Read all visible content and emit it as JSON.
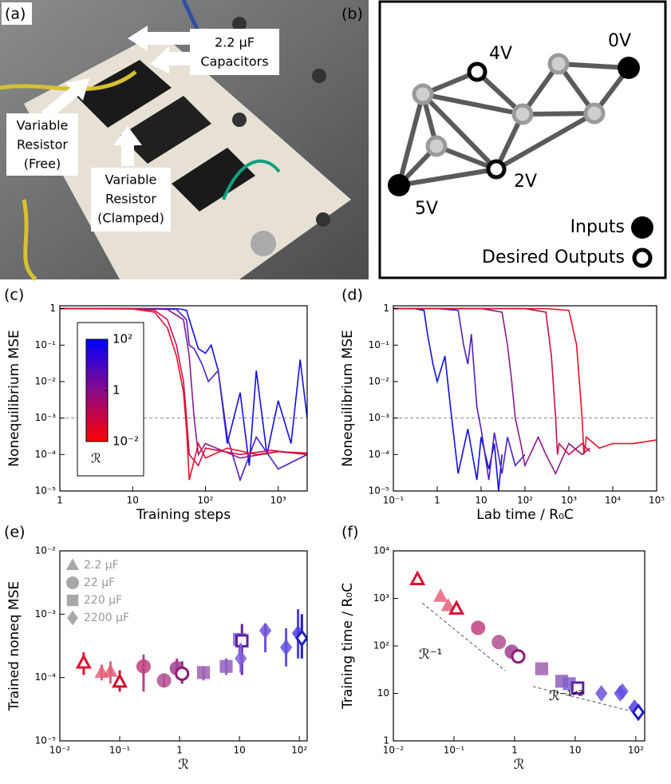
{
  "photo": {
    "label": "(a)",
    "callouts": [
      {
        "lines": [
          "2.2 μF",
          "Capacitors"
        ]
      },
      {
        "lines": [
          "Variable",
          "Resistor",
          "(Free)"
        ]
      },
      {
        "lines": [
          "Variable",
          "Resistor",
          "(Clamped)"
        ]
      }
    ]
  },
  "diagram": {
    "label": "(b)",
    "node_labels": [
      "4V",
      "0V",
      "2V",
      "5V"
    ],
    "legend": [
      "Inputs",
      "Desired Outputs"
    ]
  },
  "chart_data": [
    {
      "type": "line",
      "panel_label": "(c)",
      "x_label": "Training steps",
      "y_label": "Nonequilibrium MSE",
      "xscale": "log",
      "yscale": "log",
      "xlim": [
        1,
        2500
      ],
      "ylim": [
        1e-05,
        1.2
      ],
      "xticks": [
        1,
        10,
        {
          "value": 100,
          "label": "10²"
        },
        {
          "value": 1000,
          "label": "10³"
        }
      ],
      "yticks": [
        1,
        {
          "value": 0.1,
          "label": "10⁻¹"
        },
        {
          "value": 0.01,
          "label": "10⁻²"
        },
        {
          "value": 0.001,
          "label": "10⁻³"
        },
        {
          "value": 0.0001,
          "label": "10⁻⁴"
        },
        {
          "value": 1e-05,
          "label": "10⁻⁵"
        }
      ],
      "hline": 0.001,
      "colorbar": {
        "label": "ℛ",
        "lim": [
          0.01,
          100
        ],
        "colors": [
          "#ff0000",
          "#8a0a8a",
          "#0000ff"
        ],
        "ticks": [
          {
            "value": 100,
            "label": "10²"
          },
          1,
          {
            "value": 0.01,
            "label": "10⁻²"
          }
        ]
      },
      "series": [
        {
          "color": "#1010e0",
          "x": [
            1,
            30,
            45,
            55,
            65,
            80,
            100,
            120,
            150,
            200,
            300,
            400,
            500,
            700,
            1000,
            1500,
            2000,
            2500
          ],
          "values": [
            1,
            1,
            0.98,
            0.9,
            0.3,
            0.08,
            0.06,
            0.1,
            0.02,
            0.0002,
            0.005,
            5e-05,
            0.02,
            0.0001,
            0.003,
            0.0002,
            0.04,
            0.001
          ]
        },
        {
          "color": "#5020c0",
          "x": [
            1,
            20,
            40,
            55,
            60,
            70,
            90,
            110,
            150,
            200,
            300,
            500,
            1000,
            2500
          ],
          "values": [
            1,
            1,
            0.95,
            0.5,
            0.1,
            0.08,
            0.03,
            0.01,
            0.02,
            0.0003,
            2e-05,
            0.0003,
            4e-05,
            0.0001
          ]
        },
        {
          "color": "#8a1a8a",
          "x": [
            1,
            10,
            30,
            50,
            60,
            70,
            80,
            100,
            300,
            1000,
            2500
          ],
          "values": [
            1,
            1,
            0.95,
            0.5,
            0.05,
            0.001,
            0.0001,
            0.0002,
            8e-05,
            0.00012,
            0.0001
          ]
        },
        {
          "color": "#c8104a",
          "x": [
            1,
            10,
            20,
            30,
            40,
            50,
            55,
            60,
            80,
            100,
            300,
            800,
            2500
          ],
          "values": [
            1,
            0.99,
            0.9,
            0.5,
            0.1,
            0.01,
            0.001,
            0.0001,
            5e-05,
            0.00015,
            0.0001,
            0.00013,
            0.0001
          ]
        },
        {
          "color": "#e8102a",
          "x": [
            1,
            10,
            20,
            30,
            40,
            50,
            55,
            60,
            80,
            100,
            200,
            500,
            1000,
            2500
          ],
          "values": [
            1,
            0.98,
            0.8,
            0.3,
            0.05,
            0.005,
            0.0005,
            2e-05,
            0.0002,
            8e-05,
            0.00015,
            0.0001,
            0.00012,
            0.00011
          ]
        }
      ]
    },
    {
      "type": "line",
      "panel_label": "(d)",
      "x_label": "Lab time / R₀C",
      "y_label": "Nonequilibrium MSE",
      "xscale": "log",
      "yscale": "log",
      "xlim": [
        0.1,
        100000
      ],
      "ylim": [
        1e-05,
        1.2
      ],
      "xticks": [
        {
          "value": 0.1,
          "label": "10⁻¹"
        },
        1,
        10,
        {
          "value": 100,
          "label": "10²"
        },
        {
          "value": 1000,
          "label": "10³"
        },
        {
          "value": 10000,
          "label": "10⁴"
        },
        {
          "value": 100000,
          "label": "10⁵"
        }
      ],
      "yticks": [
        1,
        {
          "value": 0.1,
          "label": "10⁻¹"
        },
        {
          "value": 0.01,
          "label": "10⁻²"
        },
        {
          "value": 0.001,
          "label": "10⁻³"
        },
        {
          "value": 0.0001,
          "label": "10⁻⁴"
        },
        {
          "value": 1e-05,
          "label": "10⁻⁵"
        }
      ],
      "hline": 0.001,
      "series": [
        {
          "color": "#1010e0",
          "x": [
            0.1,
            0.3,
            0.5,
            0.6,
            0.8,
            1,
            1.5,
            2,
            3,
            5,
            8,
            10,
            15,
            20,
            25,
            30
          ],
          "values": [
            1,
            1,
            0.9,
            0.2,
            0.03,
            0.01,
            0.05,
            0.002,
            3e-05,
            0.0005,
            2e-05,
            0.0003,
            4e-05,
            0.0002,
            1e-05,
            0.0001
          ]
        },
        {
          "color": "#5020c0",
          "x": [
            0.1,
            1,
            3,
            4,
            5,
            6,
            8,
            10,
            15,
            20,
            30,
            40,
            60,
            100
          ],
          "values": [
            1,
            1,
            0.9,
            0.1,
            0.03,
            0.2,
            0.002,
            0.0005,
            2e-05,
            0.0004,
            3e-05,
            0.0003,
            5e-05,
            0.0001
          ]
        },
        {
          "color": "#8a1a8a",
          "x": [
            0.1,
            10,
            30,
            40,
            50,
            60,
            80,
            100,
            200,
            300,
            500,
            1000,
            2000,
            3000
          ],
          "values": [
            1,
            1,
            0.8,
            0.1,
            0.01,
            0.001,
            0.0002,
            5e-05,
            0.0003,
            0.0001,
            3e-05,
            0.0002,
            0.0001,
            0.00015
          ]
        },
        {
          "color": "#c8104a",
          "x": [
            0.1,
            100,
            300,
            400,
            500,
            550,
            600,
            1000,
            2000,
            3000
          ],
          "values": [
            1,
            1,
            0.8,
            0.05,
            0.001,
            0.0001,
            0.0002,
            0.0001,
            0.0002,
            0.00012
          ]
        },
        {
          "color": "#e8102a",
          "x": [
            0.1,
            300,
            1000,
            1500,
            2000,
            2200,
            2500,
            5000,
            10000,
            30000,
            100000
          ],
          "values": [
            1,
            1,
            0.9,
            0.1,
            0.001,
            0.0001,
            0.0003,
            0.00015,
            0.0002,
            0.0002,
            0.00025
          ]
        }
      ]
    },
    {
      "type": "scatter",
      "panel_label": "(e)",
      "x_label": "ℛ",
      "y_label": "Trained noneq MSE",
      "xscale": "log",
      "yscale": "log",
      "xlim": [
        0.01,
        135
      ],
      "ylim": [
        1e-05,
        0.01
      ],
      "legend_color": "#999999",
      "xticks": [
        {
          "value": 0.01,
          "label": "10⁻²"
        },
        {
          "value": 0.1,
          "label": "10⁻¹"
        },
        1,
        10,
        {
          "value": 100,
          "label": "10²"
        }
      ],
      "yticks": [
        {
          "value": 0.01,
          "label": "10⁻²"
        },
        {
          "value": 0.001,
          "label": "10⁻³"
        },
        {
          "value": 0.0001,
          "label": "10⁻⁴"
        },
        {
          "value": 1e-05,
          "label": "10⁻⁵"
        }
      ],
      "series": [
        {
          "name": "2.2 μF",
          "marker": "triangle",
          "x": [
            0.025,
            0.05,
            0.07,
            0.1
          ],
          "values": [
            0.00017,
            0.00012,
            0.000125,
            8.5e-05
          ],
          "low": [
            0.00011,
            9e-05,
            8e-05,
            6e-05
          ],
          "high": [
            0.00025,
            0.00016,
            0.00018,
            0.00013
          ],
          "open": [
            true,
            false,
            false,
            true
          ],
          "colors": [
            "#e0102f",
            "#e8607a",
            "#e0607a",
            "#d01030"
          ]
        },
        {
          "name": "22 μF",
          "marker": "circle",
          "x": [
            0.25,
            0.55,
            0.9,
            1.1
          ],
          "values": [
            0.00015,
            9e-05,
            0.00014,
            0.000115
          ],
          "low": [
            6e-05,
            7e-05,
            0.0001,
            8e-05
          ],
          "high": [
            0.00023,
            0.00011,
            0.0002,
            0.00018
          ],
          "open": [
            false,
            false,
            false,
            true
          ],
          "colors": [
            "#c04080",
            "#b05090",
            "#a04090",
            "#8a1a7a"
          ]
        },
        {
          "name": "220 μF",
          "marker": "square",
          "x": [
            2.5,
            6,
            10,
            11
          ],
          "values": [
            0.00012,
            0.00015,
            0.0004,
            0.00038
          ],
          "low": [
            9e-05,
            0.00011,
            0.00022,
            0.00011
          ],
          "high": [
            0.00015,
            0.0002,
            0.0005,
            0.0007
          ],
          "open": [
            false,
            false,
            false,
            true
          ],
          "colors": [
            "#a060b0",
            "#9060c0",
            "#8060d0",
            "#6020a0"
          ]
        },
        {
          "name": "2200 μF",
          "marker": "diamond",
          "x": [
            10.5,
            27,
            60,
            95,
            110
          ],
          "values": [
            0.0002,
            0.00055,
            0.0003,
            0.0005,
            0.00042
          ],
          "low": [
            0.00012,
            0.00025,
            0.00015,
            0.0002,
            0.0002
          ],
          "high": [
            0.00035,
            0.0007,
            0.0006,
            0.0012,
            0.001
          ],
          "open": [
            false,
            false,
            false,
            false,
            true
          ],
          "colors": [
            "#8060d8",
            "#7050d8",
            "#6050e0",
            "#5040e0",
            "#2020c0"
          ]
        }
      ]
    },
    {
      "type": "scatter",
      "panel_label": "(f)",
      "x_label": "ℛ",
      "y_label": "Training time / R₀C",
      "xscale": "log",
      "yscale": "log",
      "xlim": [
        0.01,
        140
      ],
      "ylim": [
        1,
        10000
      ],
      "xticks": [
        {
          "value": 0.01,
          "label": "10⁻²"
        },
        {
          "value": 0.1,
          "label": "10⁻¹"
        },
        1,
        10,
        {
          "value": 100,
          "label": "10²"
        }
      ],
      "yticks": [
        1,
        10,
        {
          "value": 100,
          "label": "10²"
        },
        {
          "value": 1000,
          "label": "10³"
        },
        {
          "value": 10000,
          "label": "10⁴"
        }
      ],
      "guides": [
        {
          "label": "ℛ⁻¹",
          "x": [
            0.03,
            0.7
          ],
          "y": [
            800,
            30
          ]
        },
        {
          "label": "ℛ⁻¹ᐟ²",
          "x": [
            2,
            100
          ],
          "y": [
            14,
            4
          ]
        }
      ],
      "series": [
        {
          "marker": "triangle",
          "x": [
            0.025,
            0.06,
            0.08,
            0.11
          ],
          "values": [
            2500,
            1100,
            700,
            600
          ],
          "open": [
            true,
            false,
            false,
            true
          ],
          "colors": [
            "#e0102f",
            "#e8607a",
            "#e0607a",
            "#d01030"
          ]
        },
        {
          "marker": "circle",
          "x": [
            0.25,
            0.55,
            0.9,
            1.15
          ],
          "values": [
            240,
            120,
            75,
            60
          ],
          "open": [
            false,
            false,
            false,
            true
          ],
          "colors": [
            "#c04080",
            "#b05090",
            "#a04090",
            "#8a1a7a"
          ]
        },
        {
          "marker": "square",
          "x": [
            2.8,
            6,
            8,
            11
          ],
          "values": [
            33,
            18,
            16,
            13
          ],
          "open": [
            false,
            false,
            false,
            true
          ],
          "colors": [
            "#a060b0",
            "#9060c0",
            "#8060d0",
            "#6020a0"
          ]
        },
        {
          "marker": "diamond",
          "x": [
            27,
            55,
            60,
            95,
            110
          ],
          "values": [
            10,
            10,
            11,
            5,
            4
          ],
          "open": [
            false,
            false,
            false,
            false,
            true
          ],
          "colors": [
            "#7050d8",
            "#6050e0",
            "#6050e0",
            "#5040e0",
            "#2020c0"
          ]
        }
      ]
    }
  ]
}
